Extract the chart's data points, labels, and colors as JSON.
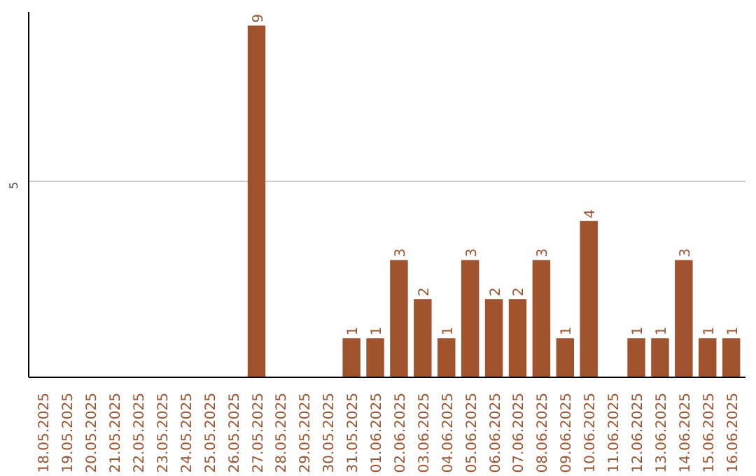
{
  "chart_data": {
    "type": "bar",
    "categories": [
      "18.05.2025",
      "19.05.2025",
      "20.05.2025",
      "21.05.2025",
      "22.05.2025",
      "23.05.2025",
      "24.05.2025",
      "25.05.2025",
      "26.05.2025",
      "27.05.2025",
      "28.05.2025",
      "29.05.2025",
      "30.05.2025",
      "31.05.2025",
      "01.06.2025",
      "02.06.2025",
      "03.06.2025",
      "04.06.2025",
      "05.06.2025",
      "06.06.2025",
      "07.06.2025",
      "08.06.2025",
      "09.06.2025",
      "10.06.2025",
      "11.06.2025",
      "12.06.2025",
      "13.06.2025",
      "14.06.2025",
      "15.06.2025",
      "16.06.2025"
    ],
    "values": [
      0,
      0,
      0,
      0,
      0,
      0,
      0,
      0,
      0,
      9,
      0,
      0,
      0,
      1,
      1,
      3,
      2,
      1,
      3,
      2,
      2,
      3,
      1,
      4,
      0,
      1,
      1,
      3,
      1,
      1
    ],
    "value_labels": [
      null,
      null,
      null,
      null,
      null,
      null,
      null,
      null,
      null,
      "9",
      null,
      null,
      null,
      "1",
      "1",
      "3",
      "2",
      "1",
      "3",
      "2",
      "2",
      "3",
      "1",
      "4",
      null,
      "1",
      "1",
      "3",
      "1",
      "1"
    ],
    "color": "#a0522d",
    "ylim": [
      0,
      9.35
    ],
    "yticks": [
      5
    ],
    "grid": "y"
  }
}
